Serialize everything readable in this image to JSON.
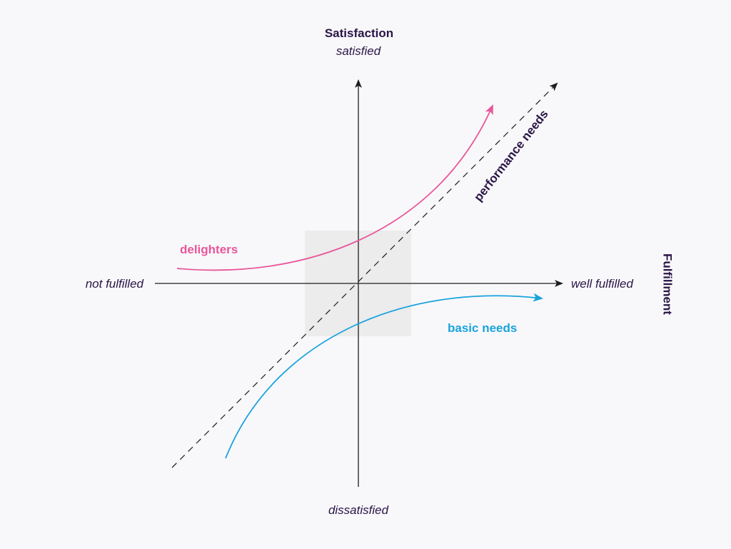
{
  "colors": {
    "background": "#f8f8fa",
    "text": "#2a1546",
    "axis": "#1e1e1e",
    "delighters": "#e9579a",
    "basic_needs": "#1aa3dd",
    "performance": "#2a2a2a",
    "center_box": "#ececec"
  },
  "axes": {
    "y": {
      "title": "Satisfaction",
      "top_label": "satisfied",
      "bottom_label": "dissatisfied"
    },
    "x": {
      "title": "Fulfillment",
      "left_label": "not fulfilled",
      "right_label": "well fulfilled"
    }
  },
  "curves": {
    "delighters": {
      "label": "delighters"
    },
    "basic_needs": {
      "label": "basic needs"
    },
    "performance": {
      "label": "performance needs",
      "style": "dashed"
    }
  }
}
